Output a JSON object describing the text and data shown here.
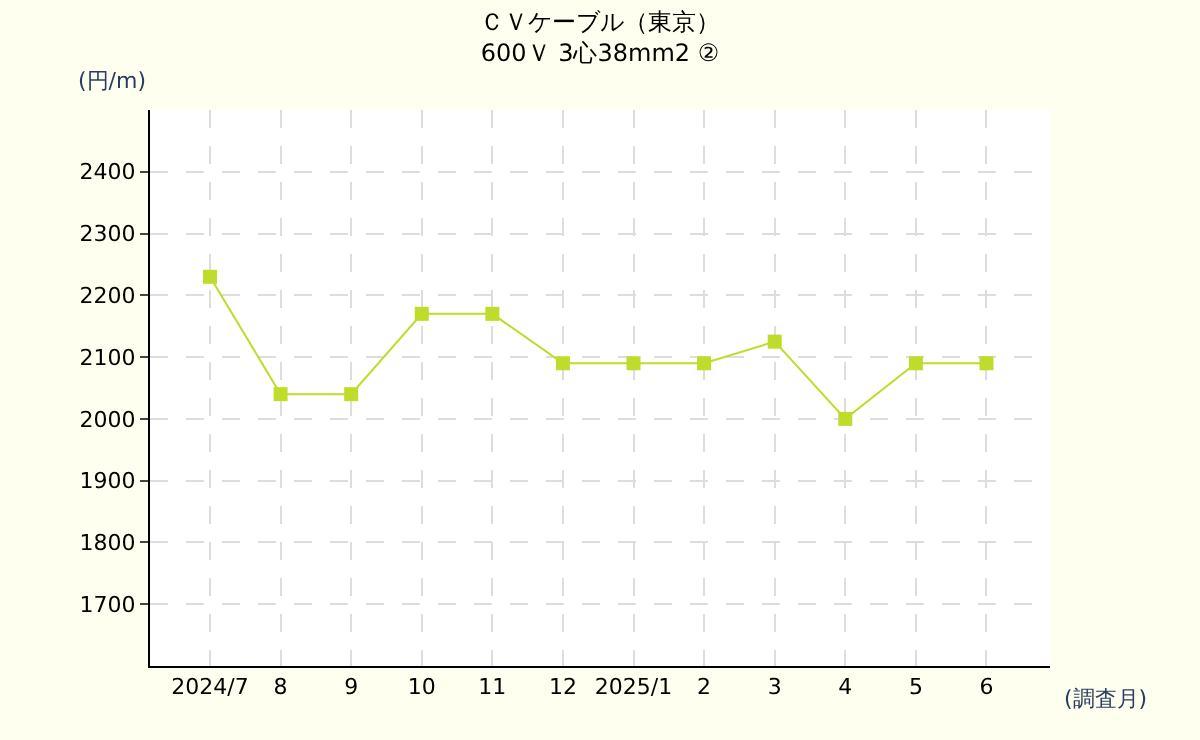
{
  "chart_data": {
    "type": "line",
    "title": "ＣＶケーブル（東京）",
    "subtitle": "600Ｖ 3心38mm2 ②",
    "ylabel": "(円/m)",
    "xlabel": "(調査月)",
    "categories": [
      "2024/7",
      "8",
      "9",
      "10",
      "11",
      "12",
      "2025/1",
      "2",
      "3",
      "4",
      "5",
      "6"
    ],
    "series": [
      {
        "color": "#bfdc2a",
        "values": [
          2230,
          2040,
          2040,
          2170,
          2170,
          2090,
          2090,
          2090,
          2125,
          2000,
          2090,
          2090
        ]
      }
    ],
    "ylim": [
      1600,
      2500
    ],
    "yticks": [
      1700,
      1800,
      1900,
      2000,
      2100,
      2200,
      2300,
      2400
    ],
    "grid": true,
    "marker": "square",
    "line_style": "solid",
    "legend": false
  }
}
